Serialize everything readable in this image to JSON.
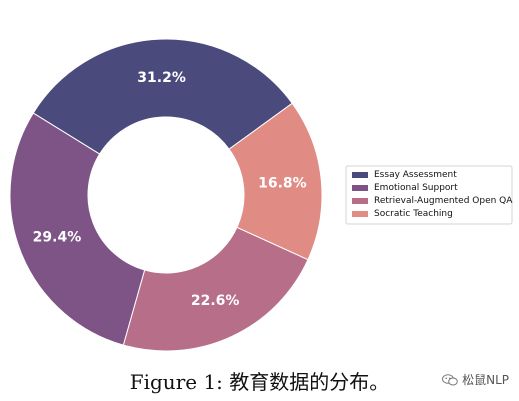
{
  "chart_data": {
    "type": "pie",
    "variant": "donut",
    "title": "",
    "legend_position": "right",
    "slices": [
      {
        "label": "Essay Assessment",
        "value": 31.2,
        "display": "31.2%",
        "color": "#4a4a7c"
      },
      {
        "label": "Emotional Support",
        "value": 29.4,
        "display": "29.4%",
        "color": "#7e5486"
      },
      {
        "label": "Retrieval-Augmented Open QA",
        "value": 22.6,
        "display": "22.6%",
        "color": "#b76e88"
      },
      {
        "label": "Socratic Teaching",
        "value": 16.8,
        "display": "16.8%",
        "color": "#e08c84"
      }
    ]
  },
  "caption": {
    "text": "Figure 1: 教育数据的分布。"
  },
  "watermark": {
    "text": "松鼠NLP"
  }
}
